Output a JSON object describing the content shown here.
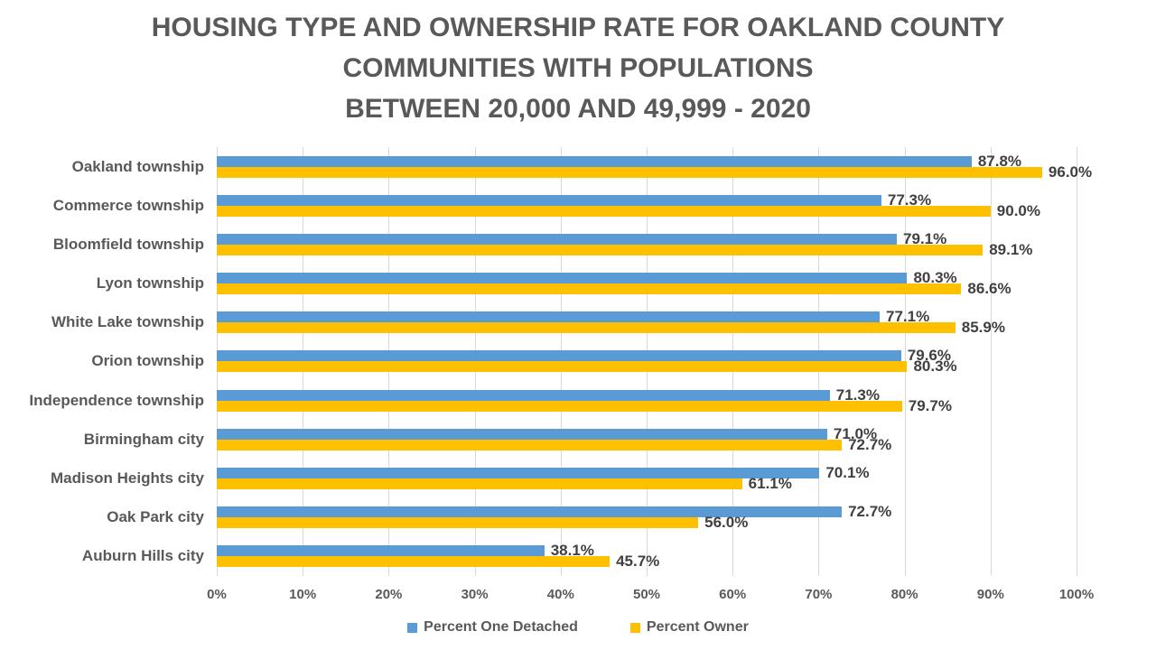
{
  "title": {
    "line1": "HOUSING TYPE AND OWNERSHIP RATE FOR OAKLAND COUNTY",
    "line2": "COMMUNITIES WITH POPULATIONS",
    "line3": "BETWEEN 20,000 AND 49,999 - 2020"
  },
  "chart_data": {
    "type": "bar",
    "orientation": "horizontal",
    "title": "HOUSING TYPE AND OWNERSHIP RATE FOR OAKLAND COUNTY COMMUNITIES WITH POPULATIONS BETWEEN 20,000 AND 49,999 - 2020",
    "categories": [
      "Oakland township",
      "Commerce township",
      "Bloomfield township",
      "Lyon township",
      "White Lake township",
      "Orion township",
      "Independence township",
      "Birmingham city",
      "Madison Heights city",
      "Oak Park city",
      "Auburn Hills city"
    ],
    "series": [
      {
        "name": "Percent One Detached",
        "color": "#5B9BD5",
        "values": [
          87.8,
          77.3,
          79.1,
          80.3,
          77.1,
          79.6,
          71.3,
          71.0,
          70.1,
          72.7,
          38.1
        ],
        "labels": [
          "87.8%",
          "77.3%",
          "79.1%",
          "80.3%",
          "77.1%",
          "79.6%",
          "71.3%",
          "71.0%",
          "70.1%",
          "72.7%",
          "38.1%"
        ]
      },
      {
        "name": "Percent Owner",
        "color": "#FFC000",
        "values": [
          96.0,
          90.0,
          89.1,
          86.6,
          85.9,
          80.3,
          79.7,
          72.7,
          61.1,
          56.0,
          45.7
        ],
        "labels": [
          "96.0%",
          "90.0%",
          "89.1%",
          "86.6%",
          "85.9%",
          "80.3%",
          "79.7%",
          "72.7%",
          "61.1%",
          "56.0%",
          "45.7%"
        ]
      }
    ],
    "xlim": [
      0,
      100
    ],
    "x_ticks": [
      "0%",
      "10%",
      "20%",
      "30%",
      "40%",
      "50%",
      "60%",
      "70%",
      "80%",
      "90%",
      "100%"
    ],
    "grid": "vertical-only",
    "legend_position": "bottom"
  },
  "colors": {
    "series_blue": "#5B9BD5",
    "series_gold": "#FFC000",
    "title_text": "#595959",
    "axis_text": "#595959",
    "value_text": "#404040",
    "gridline": "#D9D9D9",
    "background": "#FFFFFF"
  }
}
